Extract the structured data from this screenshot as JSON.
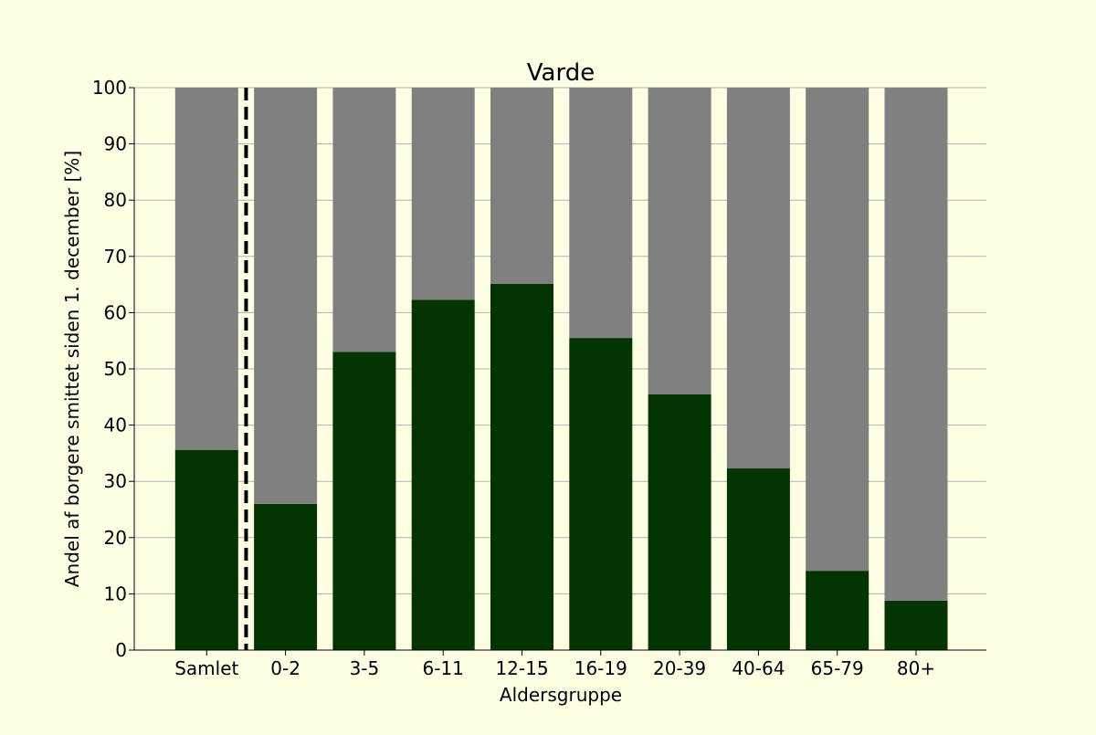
{
  "chart_data": {
    "type": "bar",
    "stacked": true,
    "title": "Varde",
    "xlabel": "Aldersgruppe",
    "ylabel": "Andel af borgere smittet siden 1. december [%]",
    "categories": [
      "Samlet",
      "0-2",
      "3-5",
      "6-11",
      "12-15",
      "16-19",
      "20-39",
      "40-64",
      "65-79",
      "80+"
    ],
    "series": [
      {
        "values": [
          35.6,
          26.0,
          53.0,
          62.3,
          65.1,
          55.5,
          45.5,
          32.3,
          14.1,
          8.8
        ],
        "color": "#033503"
      },
      {
        "values": [
          64.4,
          74.0,
          47.0,
          37.7,
          34.9,
          44.5,
          54.5,
          67.7,
          85.9,
          91.2
        ],
        "color": "#808080"
      }
    ],
    "ylim": [
      0,
      100
    ],
    "yticks": [
      0,
      10,
      20,
      30,
      40,
      50,
      60,
      70,
      80,
      90,
      100
    ],
    "grid": "horizontal",
    "separator_after_category": "Samlet",
    "colors": {
      "background": "#ffffe3",
      "grid": "#b0b0b0",
      "axis": "#000000"
    }
  }
}
